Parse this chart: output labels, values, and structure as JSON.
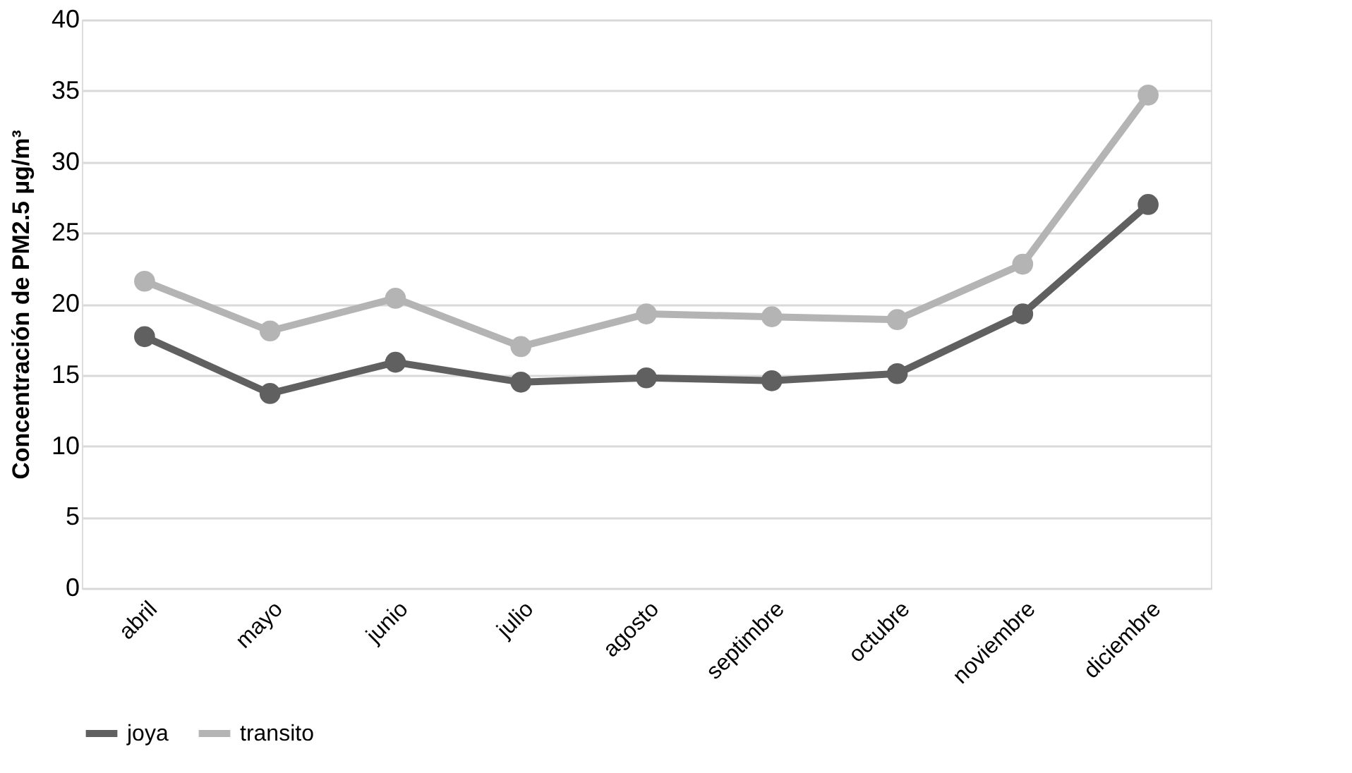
{
  "chart_data": {
    "type": "line",
    "ylabel": "Concentración de PM2.5 µg/m³",
    "categories": [
      "abril",
      "mayo",
      "junio",
      "julio",
      "agosto",
      "septimbre",
      "octubre",
      "noviembre",
      "diciembre"
    ],
    "series": [
      {
        "name": "joya",
        "color": "#606060",
        "values": [
          17.7,
          13.7,
          15.9,
          14.5,
          14.8,
          14.6,
          15.1,
          19.3,
          27.0
        ]
      },
      {
        "name": "transito",
        "color": "#b4b4b4",
        "values": [
          21.6,
          18.1,
          20.4,
          17.0,
          19.3,
          19.1,
          18.9,
          22.8,
          34.7
        ]
      }
    ],
    "ylim": [
      0,
      40
    ],
    "yticks": [
      0,
      5,
      10,
      15,
      20,
      25,
      30,
      35,
      40
    ],
    "grid": "y",
    "legend": "bottom",
    "marker": "circle",
    "line_style": "solid"
  }
}
